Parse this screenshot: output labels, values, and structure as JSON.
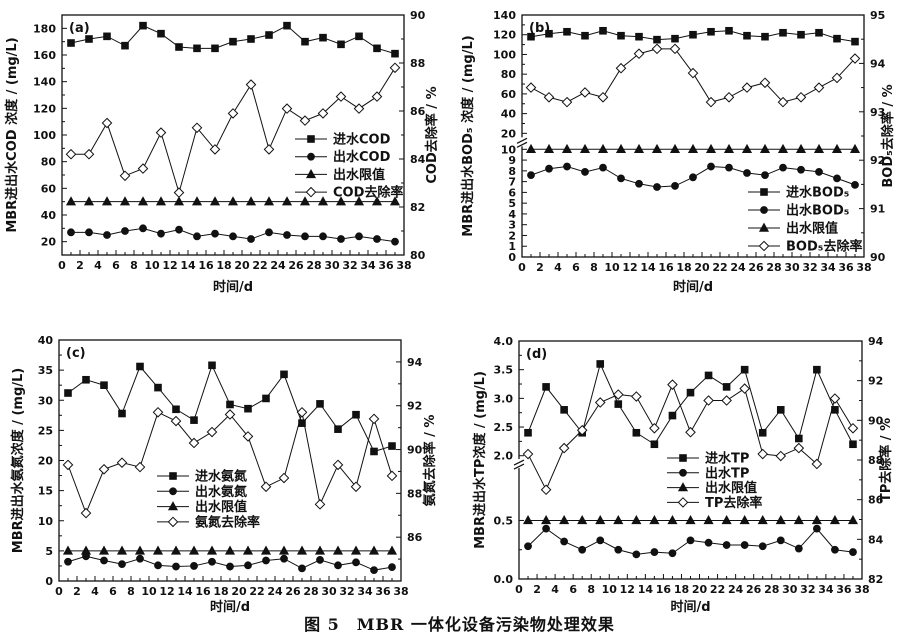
{
  "figure_caption": "图 5　MBR 一体化设备污染物处理效果",
  "chart_data": [
    {
      "id": "a",
      "type": "line",
      "panel_label": "(a)",
      "xlabel": "时间/d",
      "ylabel_left": "MBR进出水COD 浓度 / (mg/L)",
      "ylabel_right": "COD去除率 / %",
      "xlim": [
        0,
        38
      ],
      "x_ticks": [
        0,
        2,
        4,
        6,
        8,
        10,
        12,
        14,
        16,
        18,
        20,
        22,
        24,
        26,
        28,
        30,
        32,
        34,
        36,
        38
      ],
      "ylim_left": [
        10,
        190
      ],
      "left_ticks": [
        20,
        40,
        60,
        80,
        100,
        120,
        140,
        160,
        180
      ],
      "ylim_right": [
        80,
        90
      ],
      "right_ticks": [
        80,
        82,
        84,
        86,
        88,
        90
      ],
      "grid": false,
      "legend_position": "middle-right",
      "x": [
        1,
        3,
        5,
        7,
        9,
        11,
        13,
        15,
        17,
        19,
        21,
        23,
        25,
        27,
        29,
        31,
        33,
        35,
        37
      ],
      "series": [
        {
          "name": "进水COD",
          "marker": "square",
          "fill": "solid",
          "axis": "left",
          "values": [
            169,
            172,
            174,
            167,
            182,
            176,
            166,
            165,
            165,
            170,
            172,
            175,
            182,
            170,
            173,
            168,
            174,
            165,
            161
          ]
        },
        {
          "name": "出水COD",
          "marker": "circle",
          "fill": "solid",
          "axis": "left",
          "values": [
            27,
            27,
            25,
            28,
            30,
            26,
            29,
            24,
            26,
            24,
            22,
            27,
            25,
            24,
            24,
            22,
            24,
            22,
            20
          ]
        },
        {
          "name": "出水限值",
          "marker": "triangle",
          "fill": "solid",
          "axis": "left",
          "values": [
            50,
            50,
            50,
            50,
            50,
            50,
            50,
            50,
            50,
            50,
            50,
            50,
            50,
            50,
            50,
            50,
            50,
            50,
            50
          ]
        },
        {
          "name": "COD去除率",
          "marker": "diamond",
          "fill": "open",
          "axis": "right",
          "values": [
            84.2,
            84.2,
            85.5,
            83.3,
            83.6,
            85.1,
            82.6,
            85.3,
            84.4,
            85.9,
            87.1,
            84.4,
            86.1,
            85.6,
            85.9,
            86.6,
            86.1,
            86.6,
            87.8
          ]
        }
      ]
    },
    {
      "id": "b",
      "type": "line",
      "panel_label": "(b)",
      "xlabel": "时间/d",
      "ylabel_left": "MBR进出水BOD₅ 浓度 / (mg/L)",
      "ylabel_right": "BOD₅去除率 / %",
      "xlim": [
        0,
        38
      ],
      "x_ticks": [
        0,
        2,
        4,
        6,
        8,
        10,
        12,
        14,
        16,
        18,
        20,
        22,
        24,
        26,
        28,
        30,
        32,
        34,
        36,
        38
      ],
      "ylim_left": [
        0,
        140
      ],
      "left_axis_break": [
        10,
        20
      ],
      "left_ticks": [
        0,
        1,
        2,
        3,
        4,
        5,
        6,
        7,
        8,
        9,
        10,
        20,
        40,
        60,
        80,
        100,
        120,
        140
      ],
      "ylim_right": [
        90,
        95
      ],
      "right_ticks": [
        90,
        91,
        92,
        93,
        94,
        95
      ],
      "grid": false,
      "legend_position": "lower-right",
      "x": [
        1,
        3,
        5,
        7,
        9,
        11,
        13,
        15,
        17,
        19,
        21,
        23,
        25,
        27,
        29,
        31,
        33,
        35,
        37
      ],
      "series": [
        {
          "name": "进水BOD₅",
          "marker": "square",
          "fill": "solid",
          "axis": "left",
          "values": [
            118,
            121,
            123,
            119,
            124,
            119,
            118,
            115,
            116,
            120,
            123,
            124,
            119,
            118,
            122,
            120,
            122,
            116,
            113
          ]
        },
        {
          "name": "出水BOD₅",
          "marker": "circle",
          "fill": "solid",
          "axis": "left",
          "values": [
            7.6,
            8.2,
            8.4,
            7.9,
            8.3,
            7.3,
            6.8,
            6.5,
            6.6,
            7.4,
            8.4,
            8.3,
            7.8,
            7.6,
            8.3,
            8.1,
            7.9,
            7.3,
            6.7
          ]
        },
        {
          "name": "出水限值",
          "marker": "triangle",
          "fill": "solid",
          "axis": "left",
          "values": [
            10,
            10,
            10,
            10,
            10,
            10,
            10,
            10,
            10,
            10,
            10,
            10,
            10,
            10,
            10,
            10,
            10,
            10,
            10
          ]
        },
        {
          "name": "BOD₅去除率",
          "marker": "diamond",
          "fill": "open",
          "axis": "right",
          "values": [
            93.5,
            93.3,
            93.2,
            93.4,
            93.3,
            93.9,
            94.2,
            94.3,
            94.3,
            93.8,
            93.2,
            93.3,
            93.5,
            93.6,
            93.2,
            93.3,
            93.5,
            93.7,
            94.1
          ]
        }
      ]
    },
    {
      "id": "c",
      "type": "line",
      "panel_label": "(c)",
      "xlabel": "时间/d",
      "ylabel_left": "MBR进出水氨氮浓度 / (mg/L)",
      "ylabel_right": "氨氮去除率 / %",
      "xlim": [
        0,
        38
      ],
      "x_ticks": [
        0,
        2,
        4,
        6,
        8,
        10,
        12,
        14,
        16,
        18,
        20,
        22,
        24,
        26,
        28,
        30,
        32,
        34,
        36,
        38
      ],
      "ylim_left": [
        0,
        40
      ],
      "left_ticks": [
        0,
        5,
        10,
        15,
        20,
        25,
        30,
        35,
        40
      ],
      "ylim_right": [
        84,
        95
      ],
      "right_ticks": [
        86,
        88,
        90,
        92,
        94
      ],
      "grid": false,
      "legend_position": "center-left",
      "x": [
        1,
        3,
        5,
        7,
        9,
        11,
        13,
        15,
        17,
        19,
        21,
        23,
        25,
        27,
        29,
        31,
        33,
        35,
        37
      ],
      "series": [
        {
          "name": "进水氨氮",
          "marker": "square",
          "fill": "solid",
          "axis": "left",
          "values": [
            31.2,
            33.4,
            32.5,
            27.8,
            35.6,
            32.1,
            28.5,
            26.7,
            35.8,
            29.3,
            28.6,
            30.3,
            34.3,
            26.2,
            29.4,
            25.2,
            27.6,
            21.5,
            22.4
          ]
        },
        {
          "name": "出水氨氮",
          "marker": "circle",
          "fill": "solid",
          "axis": "left",
          "values": [
            3.2,
            4.1,
            3.4,
            2.8,
            3.7,
            2.6,
            2.4,
            2.5,
            3.2,
            2.4,
            2.6,
            3.4,
            3.7,
            2.1,
            3.5,
            2.6,
            3.1,
            1.8,
            2.3
          ]
        },
        {
          "name": "出水限值",
          "marker": "triangle",
          "fill": "solid",
          "axis": "left",
          "values": [
            5,
            5,
            5,
            5,
            5,
            5,
            5,
            5,
            5,
            5,
            5,
            5,
            5,
            5,
            5,
            5,
            5,
            5,
            5
          ]
        },
        {
          "name": "氨氮去除率",
          "marker": "diamond",
          "fill": "open",
          "axis": "right",
          "values": [
            89.3,
            87.1,
            89.1,
            89.4,
            89.2,
            91.7,
            91.3,
            90.3,
            90.8,
            91.6,
            90.6,
            88.3,
            88.7,
            91.7,
            87.5,
            89.3,
            88.3,
            91.4,
            88.8
          ]
        }
      ]
    },
    {
      "id": "d",
      "type": "line",
      "panel_label": "(d)",
      "xlabel": "时间/d",
      "ylabel_left": "MBR进出水TP浓度 / (mg/L)",
      "ylabel_right": "TP去除率 / %",
      "xlim": [
        0,
        38
      ],
      "x_ticks": [
        0,
        2,
        4,
        6,
        8,
        10,
        12,
        14,
        16,
        18,
        20,
        22,
        24,
        26,
        28,
        30,
        32,
        34,
        36,
        38
      ],
      "ylim_left": [
        0.0,
        4.0
      ],
      "left_axis_break": [
        0.5,
        2.0
      ],
      "left_ticks": [
        0.0,
        0.5,
        2.0,
        2.5,
        3.0,
        3.5,
        4.0
      ],
      "ylim_right": [
        82,
        94
      ],
      "right_ticks": [
        82,
        84,
        86,
        88,
        90,
        92,
        94
      ],
      "grid": false,
      "legend_position": "center",
      "x": [
        1,
        3,
        5,
        7,
        9,
        11,
        13,
        15,
        17,
        19,
        21,
        23,
        25,
        27,
        29,
        31,
        33,
        35,
        37
      ],
      "series": [
        {
          "name": "进水TP",
          "marker": "square",
          "fill": "solid",
          "axis": "left",
          "values": [
            2.4,
            3.2,
            2.8,
            2.4,
            3.6,
            2.9,
            2.4,
            2.2,
            2.7,
            3.1,
            3.4,
            3.2,
            3.5,
            2.4,
            2.8,
            2.3,
            3.5,
            2.8,
            2.2
          ]
        },
        {
          "name": "出水TP",
          "marker": "circle",
          "fill": "solid",
          "axis": "left",
          "values": [
            0.28,
            0.43,
            0.32,
            0.25,
            0.33,
            0.25,
            0.21,
            0.23,
            0.22,
            0.33,
            0.31,
            0.29,
            0.29,
            0.28,
            0.33,
            0.26,
            0.43,
            0.25,
            0.23
          ]
        },
        {
          "name": "出水限值",
          "marker": "triangle",
          "fill": "solid",
          "axis": "left",
          "values": [
            0.5,
            0.5,
            0.5,
            0.5,
            0.5,
            0.5,
            0.5,
            0.5,
            0.5,
            0.5,
            0.5,
            0.5,
            0.5,
            0.5,
            0.5,
            0.5,
            0.5,
            0.5,
            0.5
          ]
        },
        {
          "name": "TP去除率",
          "marker": "diamond",
          "fill": "open",
          "axis": "right",
          "values": [
            88.3,
            86.5,
            88.6,
            89.5,
            90.9,
            91.3,
            91.2,
            89.6,
            91.8,
            89.4,
            91.0,
            91.0,
            91.6,
            88.3,
            88.2,
            88.6,
            87.8,
            91.1,
            89.6
          ]
        }
      ]
    }
  ]
}
